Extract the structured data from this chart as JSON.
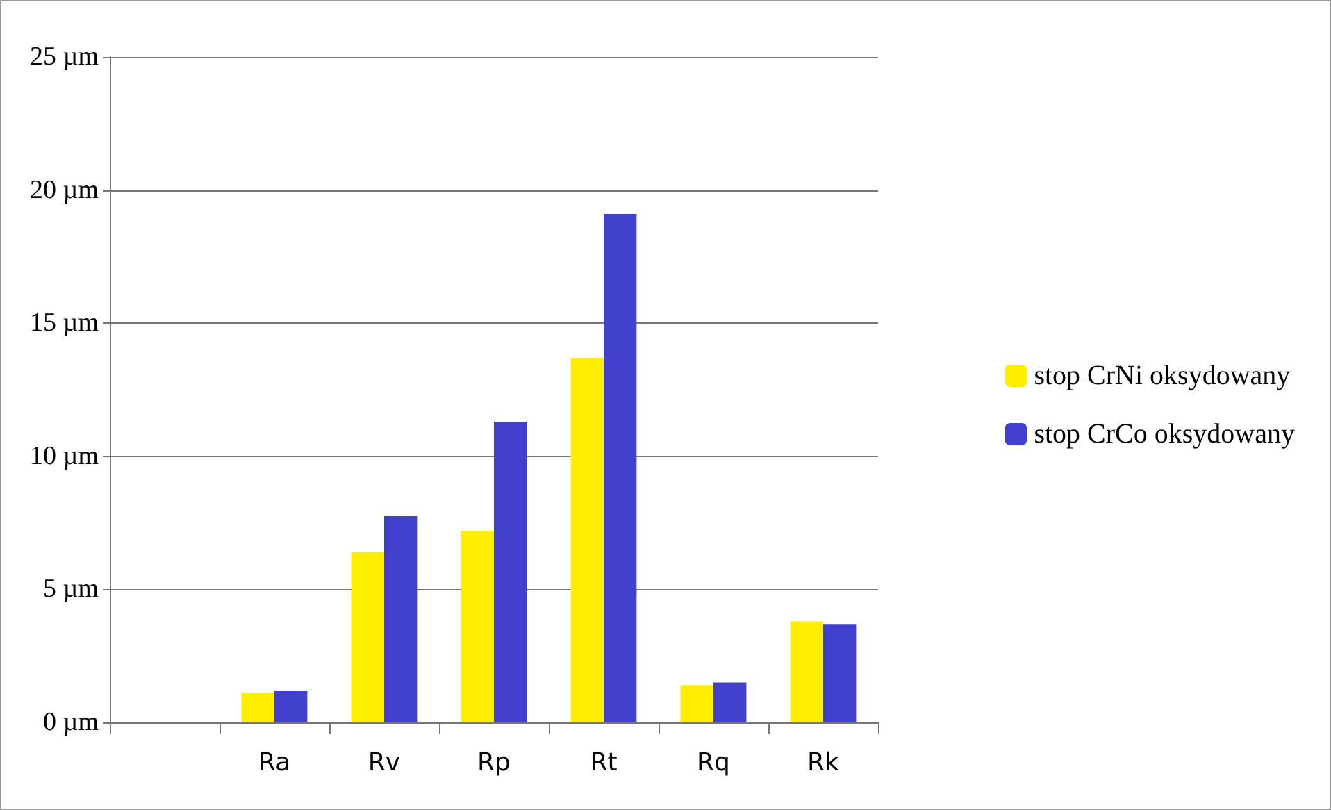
{
  "chart_data": {
    "type": "bar",
    "categories": [
      null,
      "Ra",
      "Rv",
      "Rp",
      "Rt",
      "Rq",
      "Rk"
    ],
    "series": [
      {
        "name": "stop CrNi oksydowany",
        "color": "#ffee00",
        "values": [
          null,
          1.1,
          6.4,
          7.2,
          13.7,
          1.4,
          3.8
        ]
      },
      {
        "name": "stop CrCo oksydowany",
        "color": "#4040cc",
        "values": [
          null,
          1.2,
          7.75,
          11.3,
          19.1,
          1.5,
          3.7
        ]
      }
    ],
    "ylim": [
      0,
      25
    ],
    "yticks": [
      {
        "value": 0,
        "label": "0 µm"
      },
      {
        "value": 5,
        "label": "5 µm"
      },
      {
        "value": 10,
        "label": "10 µm"
      },
      {
        "value": 15,
        "label": "15 µm"
      },
      {
        "value": 20,
        "label": "20 µm"
      },
      {
        "value": 25,
        "label": "25 µm"
      }
    ],
    "grid": "y",
    "legend": "right"
  }
}
